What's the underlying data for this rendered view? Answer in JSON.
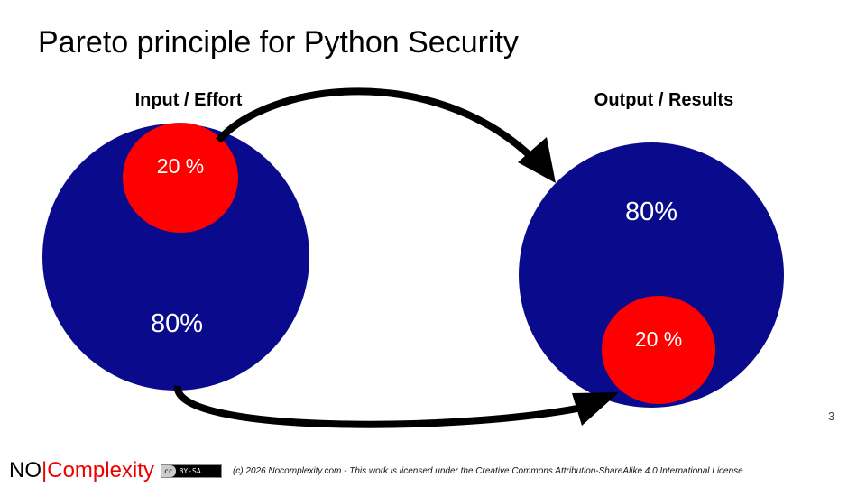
{
  "title": "Pareto principle for Python Security",
  "input": {
    "heading": "Input / Effort",
    "small_pct": "20 %",
    "large_pct": "80%"
  },
  "output": {
    "heading": "Output / Results",
    "large_pct": "80%",
    "small_pct": "20 %"
  },
  "colors": {
    "big_circle": "#0a0a8c",
    "small_circle": "#ff0000",
    "arrow": "#000000"
  },
  "page_number": "3",
  "footer": {
    "logo_left": "NO",
    "logo_right": "Complexity",
    "cc_badge": "BY-SA",
    "license": "(c) 2026 Nocomplexity.com - This work is licensed under the Creative Commons Attribution-ShareAlike 4.0 International License"
  }
}
